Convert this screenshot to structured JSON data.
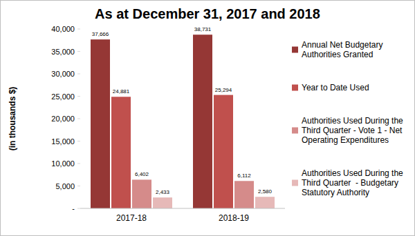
{
  "chart_data": {
    "type": "bar",
    "title": "As at December 31, 2017 and 2018",
    "y_label": "(in thousands $)",
    "categories": [
      "2017-18",
      "2018-19"
    ],
    "series": [
      {
        "name": "Annual Net Budgetary Authorities Granted",
        "color": "#953735",
        "values": [
          37666,
          38731
        ],
        "value_labels": [
          "37,666",
          "38,731"
        ]
      },
      {
        "name": "Year to Date Used",
        "color": "#c0504d",
        "values": [
          24881,
          25294
        ],
        "value_labels": [
          "24,881",
          "25,294"
        ]
      },
      {
        "name": "Authorities Used During the Third Quarter - Vote 1 - Net Operating Expenditures",
        "color": "#d58b8a",
        "values": [
          6402,
          6112
        ],
        "value_labels": [
          "6,402",
          "6,112"
        ]
      },
      {
        "name": "Authorities Used During the Third Quarter  - Budgetary Statutory Authority",
        "color": "#e6b9b8",
        "values": [
          2433,
          2580
        ],
        "value_labels": [
          "2,433",
          "2,580"
        ]
      }
    ],
    "ylim": [
      0,
      40000
    ],
    "yticks": [
      {
        "value": 0,
        "label": "-"
      },
      {
        "value": 5000,
        "label": "5,000"
      },
      {
        "value": 10000,
        "label": "10,000"
      },
      {
        "value": 15000,
        "label": "15,000"
      },
      {
        "value": 20000,
        "label": "20,000"
      },
      {
        "value": 25000,
        "label": "25,000"
      },
      {
        "value": 30000,
        "label": "30,000"
      },
      {
        "value": 35000,
        "label": "35,000"
      },
      {
        "value": 40000,
        "label": "40,000"
      }
    ],
    "grid": false,
    "legend": "right",
    "data_labels": true
  }
}
